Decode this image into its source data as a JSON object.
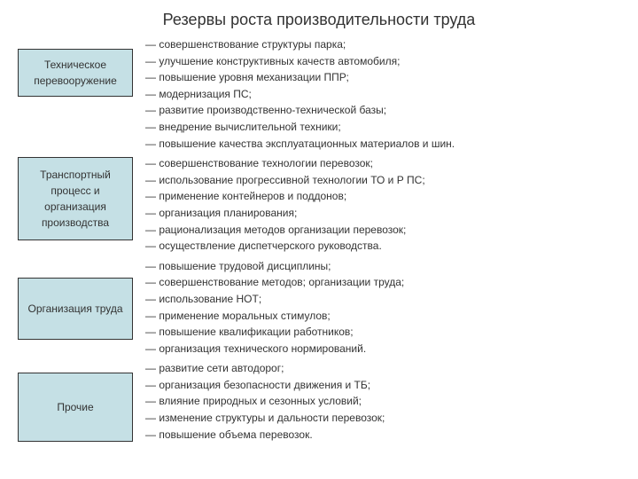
{
  "title": "Резервы роста производительности труда",
  "colors": {
    "box_bg": "#c5e0e5",
    "box_border": "#333333",
    "text": "#333333",
    "background": "#ffffff"
  },
  "typography": {
    "title_fontsize": 18,
    "body_fontsize": 12,
    "font_family": "Arial"
  },
  "sections": [
    {
      "label": "Техническое перевооружение",
      "items": [
        "— совершенствование структуры парка;",
        "— улучшение конструктивных качеств автомобиля;",
        "— повышение уровня механизации ППР;",
        "— модернизация ПС;",
        "— развитие производственно-технической базы;",
        "— внедрение вычислительной техники;",
        "— повышение качества эксплуатационных материалов и шин."
      ]
    },
    {
      "label": "Транспортный процесс и организация производства",
      "items": [
        "— совершенствование технологии перевозок;",
        "— использование прогрессивной технологии ТО и Р ПС;",
        "— применение контейнеров и поддонов;",
        "— организация планирования;",
        "— рационализация методов организации перевозок;",
        "— осуществление диспетчерского руководства."
      ]
    },
    {
      "label": "Организация труда",
      "items": [
        "— повышение трудовой дисциплины;",
        "— совершенствование методов; организации труда;",
        "— использование НОТ;",
        "— применение моральных стимулов;",
        "— повышение квалификации работников;",
        "— организация технического нормирований."
      ]
    },
    {
      "label": "Прочие",
      "items": [
        "— развитие сети автодорог;",
        "— организация безопасности движения и ТБ;",
        "— влияние природных и сезонных условий;",
        "— изменение структуры и дальности перевозок;",
        "— повышение объема перевозок."
      ]
    }
  ]
}
